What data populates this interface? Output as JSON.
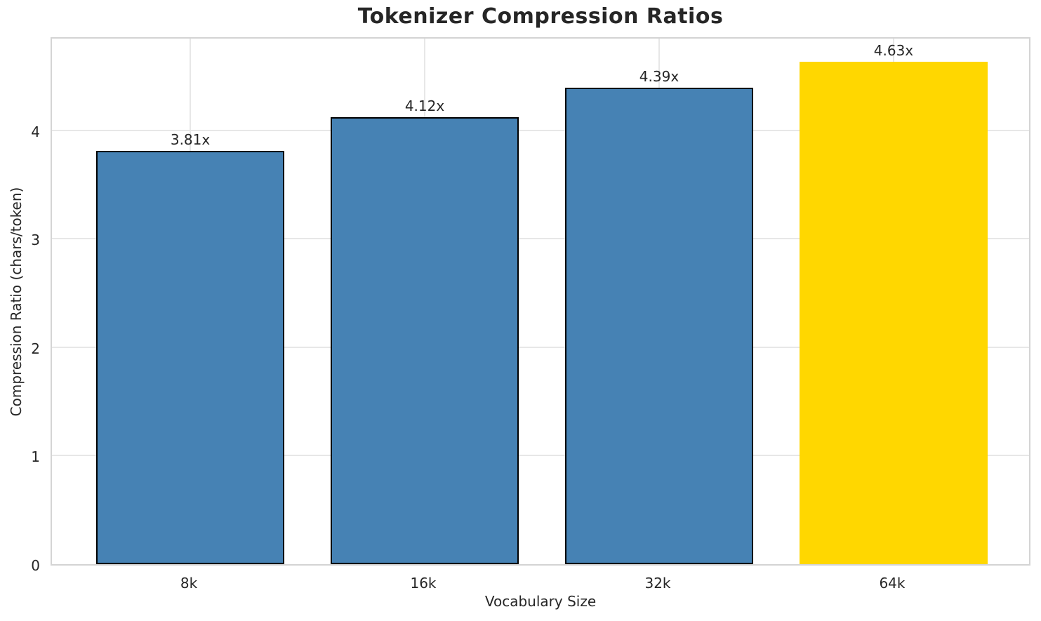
{
  "chart_data": {
    "type": "bar",
    "title": "Tokenizer Compression Ratios",
    "xlabel": "Vocabulary Size",
    "ylabel": "Compression Ratio (chars/token)",
    "categories": [
      "8k",
      "16k",
      "32k",
      "64k"
    ],
    "values": [
      3.81,
      4.12,
      4.39,
      4.63
    ],
    "bar_labels": [
      "3.81x",
      "4.12x",
      "4.39x",
      "4.63x"
    ],
    "bar_colors": [
      "#4682b4",
      "#4682b4",
      "#4682b4",
      "#ffd700"
    ],
    "bar_edge_colors": [
      "#000000",
      "#000000",
      "#000000",
      "none"
    ],
    "highlight_index": 3,
    "highlight_color": "#ffd700",
    "base_color": "#4682b4",
    "yticks": [
      0,
      1,
      2,
      3,
      4
    ],
    "ylim": [
      0,
      4.87
    ],
    "xlim": [
      -0.59,
      3.59
    ],
    "bar_width": 0.8,
    "grid": true,
    "legend": "none",
    "grid_color": "#e7e7e7",
    "spine_color": "#d4d4d4",
    "text_color": "#262626",
    "background": "#ffffff"
  }
}
